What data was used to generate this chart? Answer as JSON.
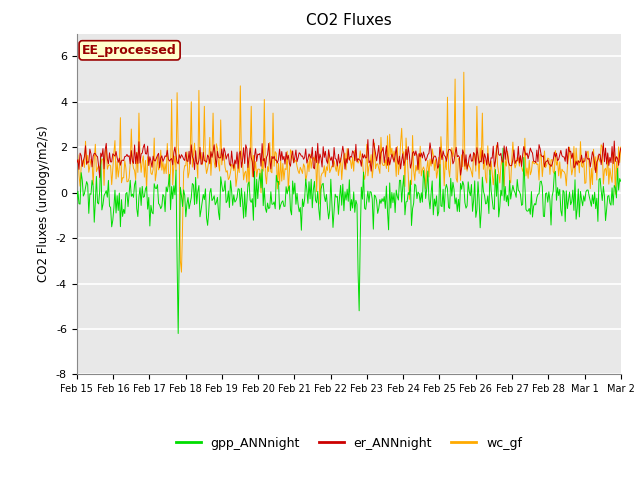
{
  "title": "CO2 Fluxes",
  "ylabel": "CO2 Fluxes (urology/m2/s)",
  "ylim": [
    -8,
    7
  ],
  "yticks": [
    -8,
    -6,
    -4,
    -2,
    0,
    2,
    4,
    6
  ],
  "fig_bg_color": "#ffffff",
  "plot_bg_color": "#e8e8e8",
  "grid_color": "#ffffff",
  "annotation_text": "EE_processed",
  "annotation_bg": "#ffffcc",
  "annotation_border": "#990000",
  "colors": {
    "gpp_ANNnight": "#00dd00",
    "er_ANNnight": "#cc0000",
    "wc_gf": "#ffaa00"
  },
  "legend_labels": [
    "gpp_ANNnight",
    "er_ANNnight",
    "wc_gf"
  ],
  "n_points": 500,
  "date_labels": [
    "Feb 15",
    "Feb 16",
    "Feb 17",
    "Feb 18",
    "Feb 19",
    "Feb 20",
    "Feb 21",
    "Feb 22",
    "Feb 23",
    "Feb 24",
    "Feb 25",
    "Feb 26",
    "Feb 27",
    "Feb 28",
    "Mar 1",
    "Mar 2"
  ],
  "seed": 12345
}
